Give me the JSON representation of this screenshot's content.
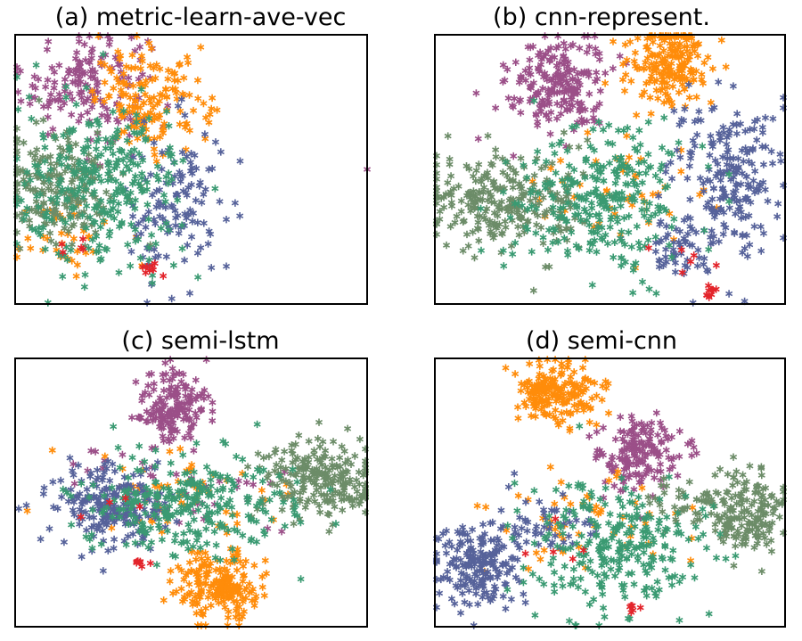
{
  "figure": {
    "panels": [
      {
        "title": "(a) metric-learn-ave-vec"
      },
      {
        "title": "(b) cnn-represent."
      },
      {
        "title": "(c) semi-lstm"
      },
      {
        "title": "(d) semi-cnn"
      }
    ]
  },
  "colors": {
    "purple": "#9B4F88",
    "orange": "#FF8C0A",
    "teal": "#3A9A72",
    "sage": "#6C8C68",
    "blue": "#56629A",
    "red": "#E3242B",
    "frame": "#000000"
  },
  "chart_data": [
    {
      "type": "scatter",
      "title": "(a) metric-learn-ave-vec",
      "marker": "*",
      "axes_visible": false,
      "grid": false,
      "xlim": [
        0,
        100
      ],
      "ylim": [
        0,
        100
      ],
      "series": [
        {
          "color": "#9B4F88",
          "clusters": [
            {
              "cx": 20,
              "cy": 82,
              "sx": 9,
              "sy": 10,
              "n": 160
            }
          ],
          "points": [
            [
              100,
              50
            ]
          ]
        },
        {
          "color": "#FF8C0A",
          "clusters": [
            {
              "cx": 39,
              "cy": 76,
              "sx": 8,
              "sy": 9,
              "n": 160
            },
            {
              "cx": 15,
              "cy": 25,
              "sx": 7,
              "sy": 6,
              "n": 35
            }
          ]
        },
        {
          "color": "#56629A",
          "clusters": [
            {
              "cx": 45,
              "cy": 35,
              "sx": 7,
              "sy": 16,
              "n": 120
            }
          ],
          "points": [
            [
              60,
              14
            ],
            [
              55,
              50
            ]
          ]
        },
        {
          "color": "#6C8C68",
          "clusters": [
            {
              "cx": 12,
              "cy": 45,
              "sx": 9,
              "sy": 11,
              "n": 200
            }
          ]
        },
        {
          "color": "#3A9A72",
          "clusters": [
            {
              "cx": 25,
              "cy": 42,
              "sx": 12,
              "sy": 16,
              "n": 290
            }
          ]
        },
        {
          "color": "#E3242B",
          "clusters": [
            {
              "cx": 38,
              "cy": 13,
              "sx": 1.2,
              "sy": 1.5,
              "n": 8
            },
            {
              "cx": 18,
              "cy": 22,
              "sx": 2,
              "sy": 2,
              "n": 5
            }
          ]
        }
      ]
    },
    {
      "type": "scatter",
      "title": "(b) cnn-represent.",
      "marker": "*",
      "axes_visible": false,
      "grid": false,
      "xlim": [
        0,
        100
      ],
      "ylim": [
        0,
        100
      ],
      "series": [
        {
          "color": "#9B4F88",
          "clusters": [
            {
              "cx": 35,
              "cy": 82,
              "sx": 7,
              "sy": 9,
              "n": 210
            }
          ]
        },
        {
          "color": "#FF8C0A",
          "clusters": [
            {
              "cx": 67,
              "cy": 90,
              "sx": 6,
              "sy": 8,
              "n": 200
            },
            {
              "cx": 52,
              "cy": 45,
              "sx": 12,
              "sy": 10,
              "n": 45
            }
          ]
        },
        {
          "color": "#56629A",
          "clusters": [
            {
              "cx": 83,
              "cy": 45,
              "sx": 8,
              "sy": 15,
              "n": 210
            },
            {
              "cx": 68,
              "cy": 22,
              "sx": 6,
              "sy": 5,
              "n": 50
            }
          ]
        },
        {
          "color": "#6C8C68",
          "clusters": [
            {
              "cx": 20,
              "cy": 38,
              "sx": 12,
              "sy": 9,
              "n": 260
            }
          ]
        },
        {
          "color": "#3A9A72",
          "clusters": [
            {
              "cx": 48,
              "cy": 38,
              "sx": 13,
              "sy": 14,
              "n": 280
            }
          ]
        },
        {
          "color": "#E3242B",
          "clusters": [
            {
              "cx": 79,
              "cy": 5,
              "sx": 1,
              "sy": 1.5,
              "n": 9
            },
            {
              "cx": 70,
              "cy": 15,
              "sx": 4,
              "sy": 4,
              "n": 6
            }
          ]
        }
      ]
    },
    {
      "type": "scatter",
      "title": "(c) semi-lstm",
      "marker": "*",
      "axes_visible": false,
      "grid": false,
      "xlim": [
        0,
        100
      ],
      "ylim": [
        0,
        100
      ],
      "series": [
        {
          "color": "#9B4F88",
          "clusters": [
            {
              "cx": 45,
              "cy": 82,
              "sx": 5,
              "sy": 7,
              "n": 170
            },
            {
              "cx": 45,
              "cy": 50,
              "sx": 16,
              "sy": 8,
              "n": 45
            }
          ]
        },
        {
          "color": "#FF8C0A",
          "clusters": [
            {
              "cx": 58,
              "cy": 15,
              "sx": 6,
              "sy": 7,
              "n": 200
            },
            {
              "cx": 45,
              "cy": 50,
              "sx": 16,
              "sy": 8,
              "n": 55
            }
          ]
        },
        {
          "color": "#56629A",
          "clusters": [
            {
              "cx": 26,
              "cy": 45,
              "sx": 8,
              "sy": 7,
              "n": 220
            }
          ],
          "points": [
            [
              1,
              44
            ]
          ]
        },
        {
          "color": "#6C8C68",
          "clusters": [
            {
              "cx": 88,
              "cy": 55,
              "sx": 9,
              "sy": 8,
              "n": 220
            }
          ]
        },
        {
          "color": "#3A9A72",
          "clusters": [
            {
              "cx": 48,
              "cy": 46,
              "sx": 15,
              "sy": 9,
              "n": 280
            }
          ]
        },
        {
          "color": "#E3242B",
          "clusters": [
            {
              "cx": 36,
              "cy": 24,
              "sx": 1.2,
              "sy": 1.2,
              "n": 8
            },
            {
              "cx": 28,
              "cy": 44,
              "sx": 4,
              "sy": 4,
              "n": 4
            }
          ]
        }
      ]
    },
    {
      "type": "scatter",
      "title": "(d) semi-cnn",
      "marker": "*",
      "axes_visible": false,
      "grid": false,
      "xlim": [
        0,
        100
      ],
      "ylim": [
        0,
        100
      ],
      "series": [
        {
          "color": "#9B4F88",
          "clusters": [
            {
              "cx": 58,
              "cy": 64,
              "sx": 6,
              "sy": 7,
              "n": 170
            }
          ]
        },
        {
          "color": "#FF8C0A",
          "clusters": [
            {
              "cx": 35,
              "cy": 87,
              "sx": 6,
              "sy": 6,
              "n": 180
            },
            {
              "cx": 45,
              "cy": 38,
              "sx": 14,
              "sy": 9,
              "n": 55
            }
          ]
        },
        {
          "color": "#56629A",
          "clusters": [
            {
              "cx": 12,
              "cy": 22,
              "sx": 6,
              "sy": 8,
              "n": 190
            },
            {
              "cx": 30,
              "cy": 38,
              "sx": 8,
              "sy": 6,
              "n": 50
            }
          ]
        },
        {
          "color": "#6C8C68",
          "clusters": [
            {
              "cx": 88,
              "cy": 42,
              "sx": 6,
              "sy": 8,
              "n": 170
            },
            {
              "cx": 72,
              "cy": 45,
              "sx": 8,
              "sy": 5,
              "n": 40
            }
          ]
        },
        {
          "color": "#3A9A72",
          "clusters": [
            {
              "cx": 50,
              "cy": 30,
              "sx": 13,
              "sy": 12,
              "n": 270
            }
          ]
        },
        {
          "color": "#E3242B",
          "clusters": [
            {
              "cx": 56,
              "cy": 6,
              "sx": 2,
              "sy": 1.5,
              "n": 6
            },
            {
              "cx": 35,
              "cy": 32,
              "sx": 5,
              "sy": 5,
              "n": 5
            }
          ]
        }
      ]
    }
  ]
}
